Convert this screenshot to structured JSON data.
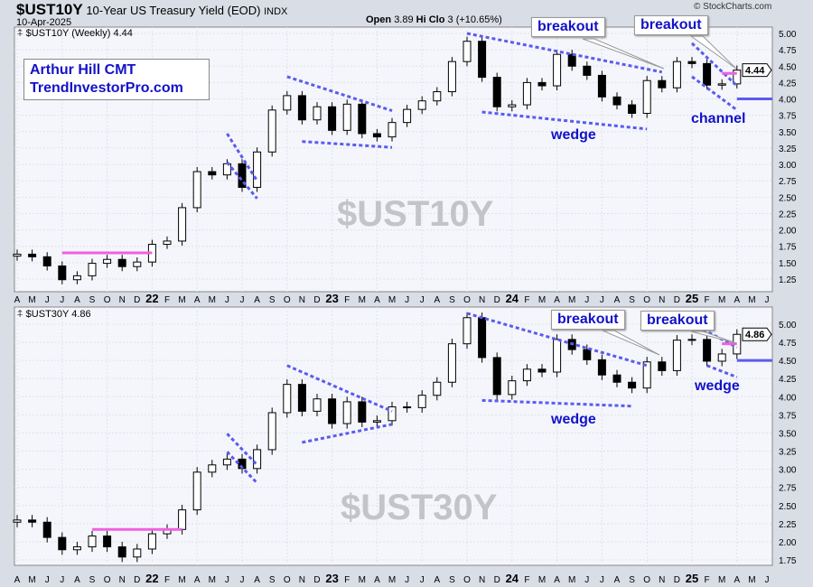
{
  "header": {
    "symbol": "$UST10Y",
    "name": "10-Year US Treasury Yield (EOD)",
    "exchange": "INDX",
    "date": "10-Apr-2025",
    "open_label": "Open",
    "open_value": "3.89",
    "high_fragment": "Hi",
    "close_fragment": "Clo",
    "change_fragment": "3 (+10.65%)",
    "credit": "© StockCharts.com"
  },
  "author": {
    "line1": "Arthur Hill CMT",
    "line2": "TrendInvestorPro.com"
  },
  "colors": {
    "background": "#f4f6fb",
    "trendline": "#5b5bf0",
    "pink": "#f060e0",
    "annotation_text": "#1212c8",
    "watermark": "#c4c4c8"
  },
  "chart_data": [
    {
      "type": "candlestick",
      "panel_label": "$UST10Y (Weekly) 4.44",
      "watermark": "$UST10Y",
      "last_value": "4.44",
      "frequency": "weekly",
      "start": "2021-04",
      "ylim": [
        1.1,
        5.05
      ],
      "yticks": [
        "1.25",
        "1.50",
        "1.75",
        "2.00",
        "2.25",
        "2.50",
        "2.75",
        "3.00",
        "3.25",
        "3.50",
        "3.75",
        "4.00",
        "4.25",
        "4.50",
        "4.75",
        "5.00"
      ],
      "closes": [
        1.63,
        1.59,
        1.45,
        1.24,
        1.3,
        1.49,
        1.55,
        1.44,
        1.51,
        1.78,
        1.83,
        2.34,
        2.89,
        2.84,
        3.01,
        2.65,
        3.19,
        3.83,
        4.05,
        3.68,
        3.88,
        3.52,
        3.92,
        3.47,
        3.42,
        3.64,
        3.84,
        3.97,
        4.11,
        4.57,
        4.88,
        4.33,
        3.88,
        3.91,
        4.25,
        4.2,
        4.68,
        4.5,
        4.36,
        4.03,
        3.91,
        3.78,
        4.28,
        4.17,
        4.57,
        4.54,
        4.21,
        4.23,
        4.44
      ],
      "annotations": {
        "lines": [
          {
            "kind": "pink",
            "from": [
              "2021-07",
              1.65
            ],
            "to": [
              "2022-01",
              1.65
            ]
          },
          {
            "kind": "trend",
            "from": [
              "2022-06",
              3.47
            ],
            "to": [
              "2022-08",
              2.75
            ]
          },
          {
            "kind": "trend",
            "from": [
              "2022-06",
              3.03
            ],
            "to": [
              "2022-08",
              2.48
            ]
          },
          {
            "kind": "trend",
            "from": [
              "2022-10",
              4.34
            ],
            "to": [
              "2023-05",
              3.82
            ]
          },
          {
            "kind": "trend",
            "from": [
              "2022-11",
              3.35
            ],
            "to": [
              "2023-05",
              3.26
            ]
          },
          {
            "kind": "trend",
            "from": [
              "2023-10",
              5.0
            ],
            "to": [
              "2024-11",
              4.41
            ]
          },
          {
            "kind": "trend",
            "from": [
              "2023-11",
              3.8
            ],
            "to": [
              "2024-10",
              3.54
            ]
          },
          {
            "kind": "trend",
            "from": [
              "2025-01",
              4.85
            ],
            "to": [
              "2025-04",
              4.2
            ]
          },
          {
            "kind": "trend",
            "from": [
              "2025-01",
              4.34
            ],
            "to": [
              "2025-04",
              3.83
            ]
          },
          {
            "kind": "pink",
            "from": [
              "2025-03",
              4.39
            ],
            "to": [
              "2025-04",
              4.39
            ]
          },
          {
            "kind": "level",
            "from": [
              "2025-04",
              4.0
            ],
            "to": [
              "2025-06",
              4.0
            ]
          }
        ],
        "texts": [
          {
            "text": "breakout",
            "kind": "callout"
          },
          {
            "text": "breakout",
            "kind": "callout"
          },
          {
            "text": "wedge",
            "kind": "label"
          },
          {
            "text": "channel",
            "kind": "label"
          }
        ]
      }
    },
    {
      "type": "candlestick",
      "panel_label": "$UST30Y 4.86",
      "watermark": "$UST30Y",
      "last_value": "4.86",
      "frequency": "weekly",
      "start": "2021-04",
      "ylim": [
        1.6,
        5.1
      ],
      "yticks": [
        "1.75",
        "2.00",
        "2.25",
        "2.50",
        "2.75",
        "3.00",
        "3.25",
        "3.50",
        "3.75",
        "4.00",
        "4.25",
        "4.50",
        "4.75",
        "5.00"
      ],
      "closes": [
        2.3,
        2.27,
        2.06,
        1.89,
        1.93,
        2.08,
        1.93,
        1.79,
        1.9,
        2.11,
        2.17,
        2.44,
        2.96,
        3.06,
        3.14,
        3.01,
        3.27,
        3.78,
        4.17,
        3.8,
        3.97,
        3.63,
        3.93,
        3.65,
        3.67,
        3.86,
        3.85,
        4.02,
        4.2,
        4.73,
        5.09,
        4.54,
        4.03,
        4.22,
        4.38,
        4.34,
        4.79,
        4.65,
        4.51,
        4.3,
        4.2,
        4.12,
        4.48,
        4.36,
        4.78,
        4.79,
        4.49,
        4.59,
        4.86
      ],
      "annotations": {
        "lines": [
          {
            "kind": "pink",
            "from": [
              "2021-09",
              2.17
            ],
            "to": [
              "2022-03",
              2.17
            ]
          },
          {
            "kind": "trend",
            "from": [
              "2022-06",
              3.49
            ],
            "to": [
              "2022-08",
              3.06
            ]
          },
          {
            "kind": "trend",
            "from": [
              "2022-06",
              3.24
            ],
            "to": [
              "2022-08",
              2.81
            ]
          },
          {
            "kind": "trend",
            "from": [
              "2022-10",
              4.43
            ],
            "to": [
              "2023-05",
              3.8
            ]
          },
          {
            "kind": "trend",
            "from": [
              "2022-11",
              3.37
            ],
            "to": [
              "2023-05",
              3.62
            ]
          },
          {
            "kind": "trend",
            "from": [
              "2023-10",
              5.15
            ],
            "to": [
              "2024-10",
              4.43
            ]
          },
          {
            "kind": "trend",
            "from": [
              "2023-11",
              3.95
            ],
            "to": [
              "2024-09",
              3.87
            ]
          },
          {
            "kind": "trend",
            "from": [
              "2025-01",
              5.01
            ],
            "to": [
              "2025-04",
              4.68
            ]
          },
          {
            "kind": "trend",
            "from": [
              "2025-02",
              4.43
            ],
            "to": [
              "2025-04",
              4.27
            ]
          },
          {
            "kind": "pink",
            "from": [
              "2025-03",
              4.73
            ],
            "to": [
              "2025-04",
              4.73
            ]
          },
          {
            "kind": "level",
            "from": [
              "2025-04",
              4.5
            ],
            "to": [
              "2025-06",
              4.5
            ]
          }
        ],
        "texts": [
          {
            "text": "breakout",
            "kind": "callout"
          },
          {
            "text": "breakout",
            "kind": "callout"
          },
          {
            "text": "wedge",
            "kind": "label"
          },
          {
            "text": "wedge",
            "kind": "label"
          }
        ]
      }
    }
  ],
  "x_axis": {
    "labels": [
      "A",
      "M",
      "J",
      "J",
      "A",
      "S",
      "O",
      "N",
      "D",
      "22",
      "F",
      "M",
      "A",
      "M",
      "J",
      "J",
      "A",
      "S",
      "O",
      "N",
      "D",
      "23",
      "F",
      "M",
      "A",
      "M",
      "J",
      "J",
      "A",
      "S",
      "O",
      "N",
      "D",
      "24",
      "F",
      "M",
      "A",
      "M",
      "J",
      "J",
      "A",
      "S",
      "O",
      "N",
      "D",
      "25",
      "F",
      "M",
      "A",
      "M",
      "J"
    ]
  }
}
